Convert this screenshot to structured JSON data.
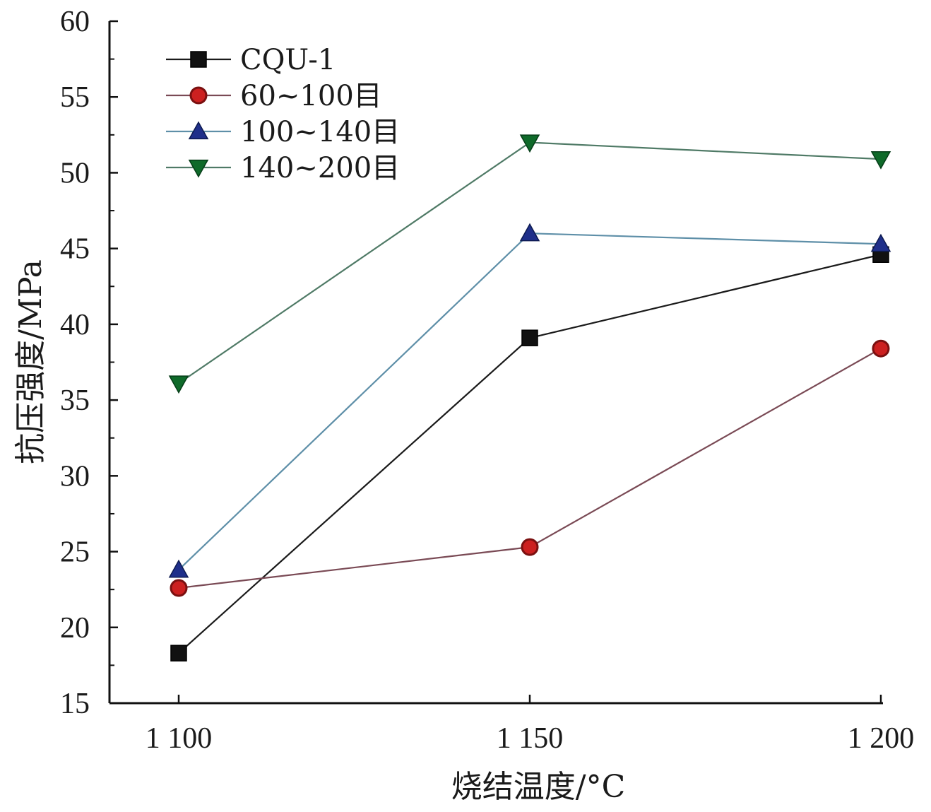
{
  "chart_data": {
    "type": "line",
    "xlabel": "烧结温度/°C",
    "ylabel": "抗压强度/MPa",
    "categories": [
      "1 100",
      "1 150",
      "1 200"
    ],
    "ylim": [
      15,
      60
    ],
    "yticks": [
      "15",
      "20",
      "25",
      "30",
      "35",
      "40",
      "45",
      "50",
      "55",
      "60"
    ],
    "grid": false,
    "legend_position": "top-left",
    "series": [
      {
        "name": "CQU-1",
        "values": [
          18.3,
          39.1,
          44.6
        ],
        "color": "#1a1a1a",
        "marker": "square",
        "marker_fill": "#111111"
      },
      {
        "name": "60~100目",
        "values": [
          22.6,
          25.3,
          38.4
        ],
        "color": "#7a4a55",
        "marker": "circle",
        "marker_fill": "#cc2020"
      },
      {
        "name": "100~140目",
        "values": [
          23.8,
          46.0,
          45.3
        ],
        "color": "#5e8fa8",
        "marker": "triangle-up",
        "marker_fill": "#1f2f8a"
      },
      {
        "name": "140~200目",
        "values": [
          36.1,
          52.0,
          50.9
        ],
        "color": "#4f7a66",
        "marker": "triangle-down",
        "marker_fill": "#0f6a2a"
      }
    ]
  }
}
